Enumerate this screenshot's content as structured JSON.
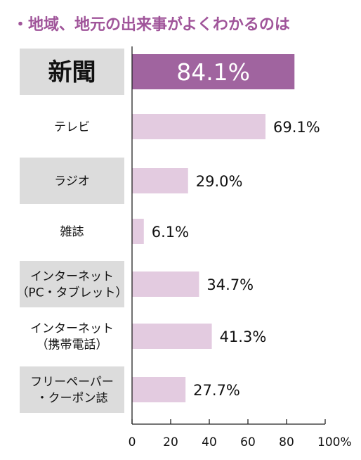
{
  "chart_data": {
    "type": "bar",
    "orientation": "horizontal",
    "title": "・地域、地元の出来事がよくわかるのは",
    "categories": [
      [
        "新聞"
      ],
      [
        "テレビ"
      ],
      [
        "ラジオ"
      ],
      [
        "雑誌"
      ],
      [
        "インターネット",
        "（PC・タブレット）"
      ],
      [
        "インターネット",
        "（携帯電話）"
      ],
      [
        "フリーペーパー",
        "・クーポン誌"
      ]
    ],
    "values": [
      84.1,
      69.1,
      29.0,
      6.1,
      34.7,
      41.3,
      27.7
    ],
    "value_labels": [
      "84.1%",
      "69.1%",
      "29.0%",
      "6.1%",
      "34.7%",
      "41.3%",
      "27.7%"
    ],
    "highlight_index": 0,
    "xlim": [
      0,
      100
    ],
    "x_ticks": [
      "0",
      "20",
      "40",
      "60",
      "80",
      "100%"
    ],
    "grid": false,
    "colors": {
      "title": "#a0559a",
      "highlight_bar": "#a0649f",
      "bar": "#e3cbe0",
      "label_bg": "#dcdcdc",
      "axis": "#222222"
    }
  }
}
